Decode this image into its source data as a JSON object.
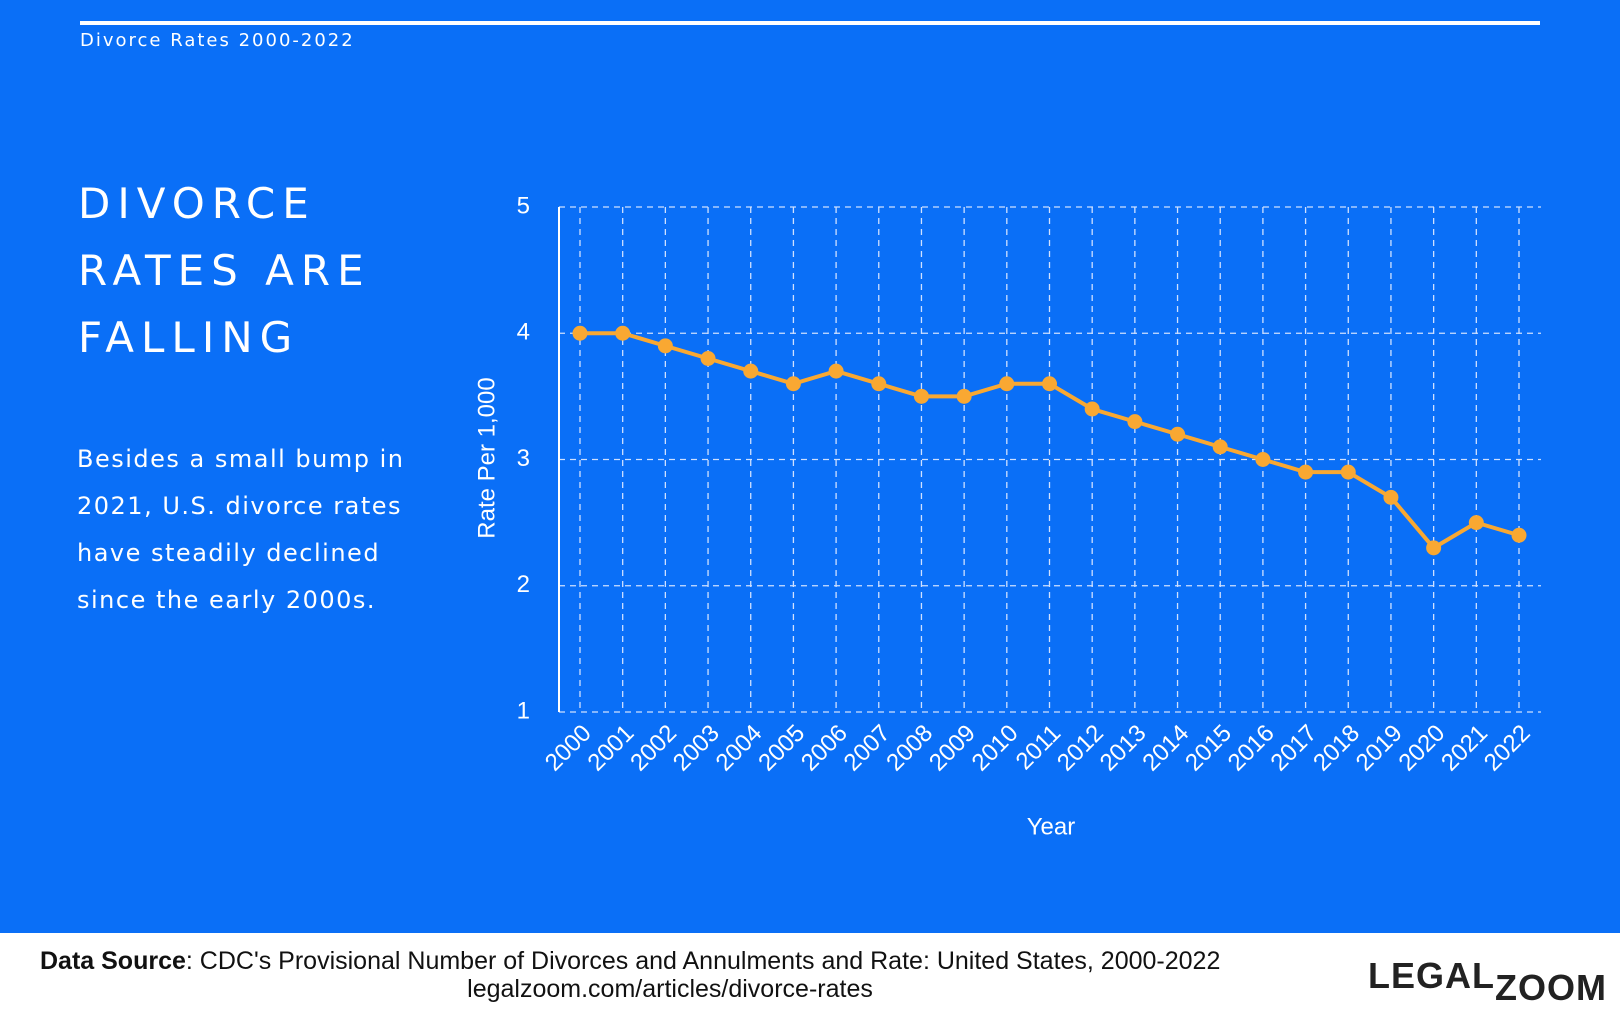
{
  "header": {
    "title": "Divorce Rates 2000-2022"
  },
  "heading": [
    "DIVORCE",
    "RATES ARE",
    "FALLING"
  ],
  "description": "Besides a small bump in 2021, U.S. divorce rates have steadily declined since the early 2000s.",
  "chart_data": {
    "type": "line",
    "x_label": "Year",
    "y_label": "Rate Per 1,000",
    "categories": [
      "2000",
      "2001",
      "2002",
      "2003",
      "2004",
      "2005",
      "2006",
      "2007",
      "2008",
      "2009",
      "2010",
      "2011",
      "2012",
      "2013",
      "2014",
      "2015",
      "2016",
      "2017",
      "2018",
      "2019",
      "2020",
      "2021",
      "2022"
    ],
    "series": [
      {
        "name": "Rate Per 1,000",
        "color": "#f9a832",
        "values": [
          4.0,
          4.0,
          3.9,
          3.8,
          3.7,
          3.6,
          3.7,
          3.6,
          3.5,
          3.5,
          3.6,
          3.6,
          3.4,
          3.3,
          3.2,
          3.1,
          3.0,
          2.9,
          2.9,
          2.7,
          2.3,
          2.5,
          2.4
        ]
      }
    ],
    "ylim": [
      1,
      5
    ],
    "yticks": [
      1,
      2,
      3,
      4,
      5
    ],
    "grid": true
  },
  "footer": {
    "source_label": "Data Source",
    "source_text": ": CDC's Provisional Number of Divorces and Annulments and Rate: United States, 2000-2022",
    "url": "legalzoom.com/articles/divorce-rates",
    "logo_main": "LEGAL",
    "logo_sub": "ZOOM"
  }
}
